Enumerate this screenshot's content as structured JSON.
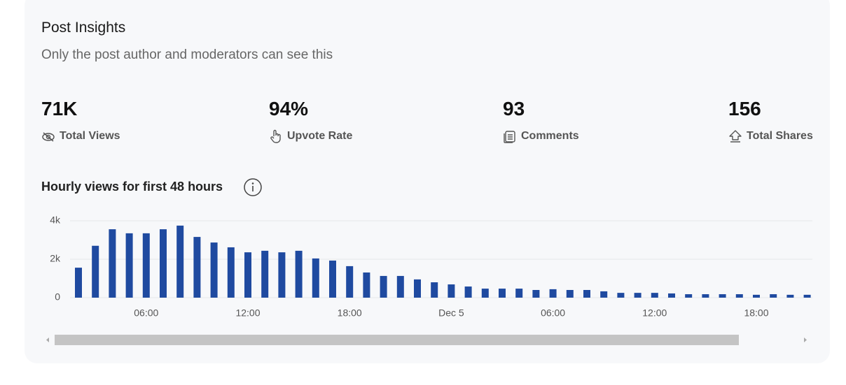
{
  "header": {
    "title": "Post Insights",
    "subtitle": "Only the post author and moderators can see this"
  },
  "stats": [
    {
      "value": "71K",
      "label": "Total Views"
    },
    {
      "value": "94%",
      "label": "Upvote Rate"
    },
    {
      "value": "93",
      "label": "Comments"
    },
    {
      "value": "156",
      "label": "Total Shares"
    }
  ],
  "chart_data": {
    "type": "bar",
    "title": "Hourly views for first 48 hours",
    "color": "#1f4aa0",
    "categories": [
      null,
      null,
      null,
      null,
      "06:00",
      null,
      null,
      null,
      null,
      null,
      "12:00",
      null,
      null,
      null,
      null,
      null,
      "18:00",
      null,
      null,
      null,
      null,
      null,
      "Dec 5",
      null,
      null,
      null,
      null,
      null,
      "06:00",
      null,
      null,
      null,
      null,
      null,
      "12:00",
      null,
      null,
      null,
      null,
      null,
      "18:00",
      null,
      null,
      null
    ],
    "values": [
      1560,
      2700,
      3560,
      3350,
      3350,
      3560,
      3750,
      3160,
      2870,
      2620,
      2360,
      2440,
      2360,
      2440,
      2040,
      1930,
      1640,
      1310,
      1130,
      1130,
      950,
      800,
      690,
      580,
      470,
      470,
      470,
      400,
      440,
      400,
      400,
      330,
      250,
      250,
      250,
      220,
      180,
      180,
      180,
      180,
      150,
      180,
      150,
      150
    ],
    "ylim": [
      0,
      4000
    ],
    "yticks": [
      {
        "value": 0,
        "label": "0"
      },
      {
        "value": 2000,
        "label": "2k"
      },
      {
        "value": 4000,
        "label": "4k"
      }
    ],
    "grid": true
  }
}
